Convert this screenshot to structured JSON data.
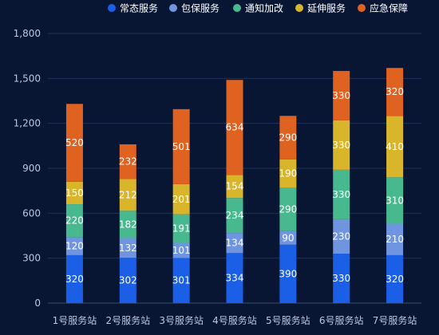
{
  "chart_data": {
    "type": "bar",
    "stacked": true,
    "title": "",
    "xlabel": "",
    "ylabel": "",
    "ylim": [
      0,
      1800
    ],
    "yticks": [
      0,
      300,
      600,
      900,
      1200,
      1500,
      1800
    ],
    "ytick_labels": [
      "0",
      "300",
      "600",
      "900",
      "1,200",
      "1,500",
      "1,800"
    ],
    "grid": true,
    "legend_position": "top-right",
    "categories": [
      "1号服务站",
      "2号服务站",
      "3号服务站",
      "4号服务站",
      "5号服务站",
      "6号服务站",
      "7号服务站"
    ],
    "series": [
      {
        "name": "常态服务",
        "color": "#1a5fe6",
        "values": [
          320,
          302,
          301,
          334,
          390,
          330,
          320
        ]
      },
      {
        "name": "包保服务",
        "color": "#6f95e0",
        "values": [
          120,
          132,
          101,
          134,
          90,
          230,
          210
        ]
      },
      {
        "name": "通知加改",
        "color": "#48b98f",
        "values": [
          220,
          182,
          191,
          234,
          290,
          330,
          310
        ]
      },
      {
        "name": "延伸服务",
        "color": "#d8b52a",
        "values": [
          150,
          212,
          201,
          154,
          190,
          330,
          410
        ]
      },
      {
        "name": "应急保障",
        "color": "#e06220",
        "values": [
          520,
          232,
          501,
          634,
          290,
          330,
          320
        ]
      }
    ]
  }
}
